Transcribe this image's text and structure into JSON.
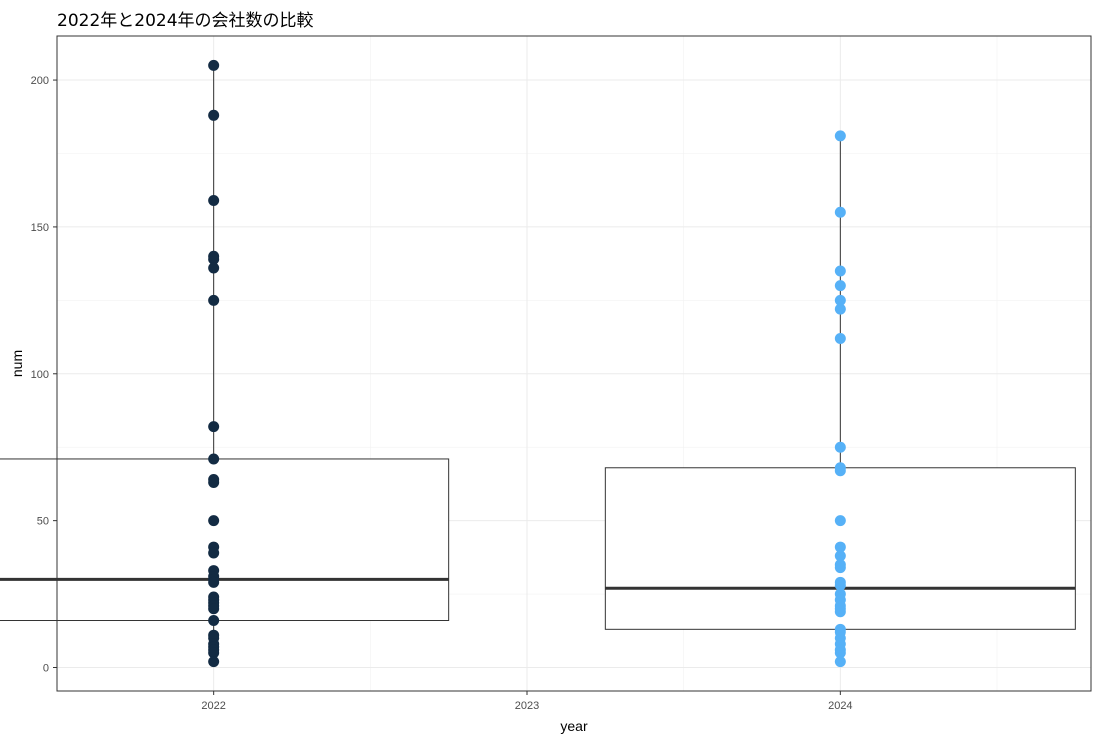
{
  "chart_data": {
    "type": "box",
    "title": "2022年と2024年の会社数の比較",
    "xlabel": "year",
    "ylabel": "num",
    "xlim": [
      2021.5,
      2024.8
    ],
    "ylim": [
      -8,
      215
    ],
    "x_ticks": [
      "2022",
      "2023",
      "2024"
    ],
    "y_ticks": [
      "0",
      "50",
      "100",
      "150",
      "200"
    ],
    "grid": true,
    "legend": "none",
    "series": [
      {
        "x": 2022,
        "color": "#132b43",
        "box": {
          "lower": 16,
          "median": 30,
          "upper": 71,
          "whisker_low": 2,
          "whisker_high": 205,
          "left": 2021.25,
          "right": 2022.75
        },
        "points": [
          205,
          188,
          159,
          140,
          139,
          136,
          125,
          82,
          71,
          64,
          63,
          50,
          41,
          39,
          33,
          31,
          30,
          29,
          24,
          23,
          22,
          21,
          20,
          16,
          11,
          10,
          8,
          7,
          6,
          5,
          2
        ]
      },
      {
        "x": 2024,
        "color": "#56b1f7",
        "box": {
          "lower": 13,
          "median": 27,
          "upper": 68,
          "whisker_low": 2,
          "whisker_high": 181,
          "left": 2023.25,
          "right": 2024.75
        },
        "points": [
          181,
          155,
          135,
          130,
          125,
          122,
          112,
          75,
          68,
          67,
          50,
          41,
          38,
          35,
          34,
          29,
          28,
          25,
          23,
          21,
          20,
          19,
          13,
          12,
          10,
          8,
          6,
          5,
          2
        ]
      }
    ]
  }
}
